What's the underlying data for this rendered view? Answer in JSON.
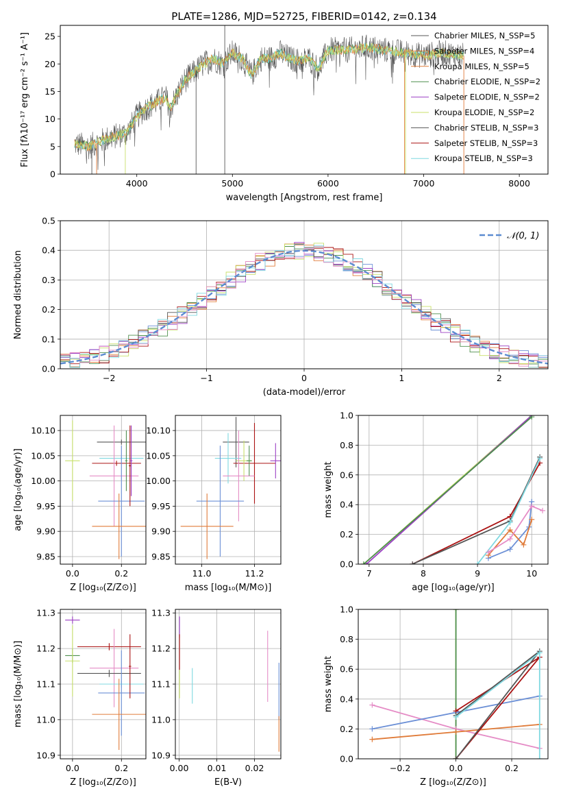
{
  "colors": {
    "tab_blue": "#6b8fd6",
    "tab_orange": "#e07b39",
    "tab_green": "#4e8f4e",
    "tab_purple": "#9c3fc4",
    "tab_yellow": "#c8e06a",
    "tab_gray": "#555555",
    "tab_red": "#aa1111",
    "tab_cyan": "#7fd8e0",
    "tab_pink": "#e58cc6",
    "lime": "#a8e040"
  },
  "chart_data": [
    {
      "id": "spectrum",
      "type": "line",
      "title": "PLATE=1286, MJD=52725, FIBERID=0142, z=0.134",
      "xlabel": "wavelength [Angstrom, rest frame]",
      "ylabel": "Flux [fλ10⁻¹⁷ erg cm⁻² s⁻¹ A⁻¹]",
      "xlim": [
        3200,
        8300
      ],
      "ylim": [
        0,
        27
      ],
      "xticks": [
        "4000",
        "5000",
        "6000",
        "7000",
        "8000"
      ],
      "yticks": [
        "0",
        "5",
        "10",
        "15",
        "20",
        "25"
      ],
      "xtick_values": [
        4000,
        5000,
        6000,
        7000,
        8000
      ],
      "ytick_values": [
        0,
        5,
        10,
        15,
        20,
        25
      ],
      "legend_position": "upper-right",
      "series": [
        {
          "name": "Chabrier MILES, N_SSP=5"
        },
        {
          "name": "Salpeter MILES, N_SSP=4"
        },
        {
          "name": "Kroupa MILES, N_SSP=5"
        },
        {
          "name": "Chabrier ELODIE, N_SSP=2"
        },
        {
          "name": "Salpeter ELODIE, N_SSP=2"
        },
        {
          "name": "Kroupa ELODIE, N_SSP=2"
        },
        {
          "name": "Chabrier STELIB, N_SSP=3"
        },
        {
          "name": "Salpeter STELIB, N_SSP=3"
        },
        {
          "name": "Kroupa STELIB, N_SSP=3"
        }
      ],
      "envelope": [
        [
          3350,
          5.5
        ],
        [
          3500,
          5.0
        ],
        [
          3700,
          6.5
        ],
        [
          3900,
          7.5
        ],
        [
          4000,
          10.5
        ],
        [
          4100,
          12
        ],
        [
          4200,
          13
        ],
        [
          4300,
          14
        ],
        [
          4350,
          12
        ],
        [
          4500,
          17
        ],
        [
          4700,
          20
        ],
        [
          4800,
          21
        ],
        [
          4900,
          20
        ],
        [
          5000,
          22
        ],
        [
          5100,
          21
        ],
        [
          5200,
          18
        ],
        [
          5300,
          21
        ],
        [
          5400,
          21
        ],
        [
          5500,
          22
        ],
        [
          5600,
          21
        ],
        [
          5700,
          20.5
        ],
        [
          5800,
          21
        ],
        [
          5900,
          19
        ],
        [
          6000,
          22.5
        ],
        [
          6200,
          22.5
        ],
        [
          6400,
          23
        ],
        [
          6600,
          22.5
        ],
        [
          6800,
          22
        ],
        [
          7000,
          21.5
        ],
        [
          7200,
          22
        ],
        [
          7400,
          21.5
        ]
      ]
    },
    {
      "id": "residuals",
      "type": "histogram",
      "xlabel": "(data-model)/error",
      "ylabel": "Normed distribution",
      "xlim": [
        -2.5,
        2.5
      ],
      "ylim": [
        0,
        0.5
      ],
      "xticks": [
        "−2",
        "−1",
        "0",
        "1",
        "2"
      ],
      "yticks": [
        "0.0",
        "0.1",
        "0.2",
        "0.3",
        "0.4",
        "0.5"
      ],
      "xtick_values": [
        -2,
        -1,
        0,
        1,
        2
      ],
      "ytick_values": [
        0,
        0.1,
        0.2,
        0.3,
        0.4,
        0.5
      ],
      "reference_curve": {
        "name": "𝒩(0, 1)",
        "mean": 0,
        "sigma": 1
      },
      "legend_position": "upper-right"
    },
    {
      "id": "age_vs_Z",
      "type": "scatter",
      "xlabel": "Z [log₁₀(Z/Z⊙)]",
      "ylabel": "age  [log₁₀(age/yr)]",
      "xlim": [
        -0.05,
        0.3
      ],
      "ylim": [
        9.835,
        10.13
      ],
      "xticks": [
        "0.0",
        "0.2"
      ],
      "xtick_values": [
        0,
        0.2
      ],
      "yticks": [
        "9.85",
        "9.90",
        "9.95",
        "10.00",
        "10.05",
        "10.10"
      ],
      "ytick_values": [
        9.85,
        9.9,
        9.95,
        10.0,
        10.05,
        10.1
      ],
      "errorbars": [
        {
          "color": "tab_gray",
          "x": 0.2,
          "xerr": 0.1,
          "y": 10.077,
          "yerr": 0.005
        },
        {
          "color": "tab_red",
          "x": 0.18,
          "xerr": 0.1,
          "y": 10.035,
          "yerr": 0.005
        },
        {
          "color": "tab_cyan",
          "x": 0.2,
          "xerr": 0.09,
          "y": 10.045,
          "yerr": 0.003
        },
        {
          "color": "tab_yellow",
          "x": 0.0,
          "xerr": 0.03,
          "y": 10.04,
          "yerr": 0.08
        },
        {
          "color": "tab_pink",
          "x": 0.17,
          "xerr": 0.1,
          "y": 10.01,
          "yerr": 0.1
        },
        {
          "color": "tab_blue",
          "x": 0.2,
          "xerr": 0.095,
          "y": 9.96,
          "yerr": 0.11
        },
        {
          "color": "tab_orange",
          "x": 0.19,
          "xerr": 0.11,
          "y": 9.91,
          "yerr": 0.065
        },
        {
          "color": "tab_red",
          "x": 0.235,
          "xerr": 0.005,
          "y": 10.03,
          "yerr": 0.08
        },
        {
          "color": "tab_purple",
          "x": 0.24,
          "xerr": 0.005,
          "y": 10.04,
          "yerr": 0.07
        },
        {
          "color": "tab_green",
          "x": 0.22,
          "xerr": 0.005,
          "y": 10.04,
          "yerr": 0.06
        }
      ]
    },
    {
      "id": "age_vs_mass",
      "type": "scatter",
      "xlabel": "mass [log₁₀(M/M⊙)]",
      "ylabel": "",
      "xlim": [
        10.9,
        11.3
      ],
      "ylim": [
        9.835,
        10.13
      ],
      "xticks": [
        "11.0",
        "11.2"
      ],
      "xtick_values": [
        11.0,
        11.2
      ],
      "yticks": [
        "9.85",
        "9.90",
        "9.95",
        "10.00",
        "10.05",
        "10.10"
      ],
      "ytick_values": [
        9.85,
        9.9,
        9.95,
        10.0,
        10.05,
        10.1
      ],
      "errorbars": [
        {
          "color": "tab_gray",
          "x": 11.13,
          "xerr": 0.05,
          "y": 10.077,
          "yerr": 0.05
        },
        {
          "color": "tab_red",
          "x": 11.2,
          "xerr": 0.08,
          "y": 10.035,
          "yerr": 0.08
        },
        {
          "color": "tab_cyan",
          "x": 11.1,
          "xerr": 0.05,
          "y": 10.045,
          "yerr": 0.05
        },
        {
          "color": "tab_yellow",
          "x": 11.16,
          "xerr": 0.03,
          "y": 10.04,
          "yerr": 0.04
        },
        {
          "color": "tab_pink",
          "x": 11.14,
          "xerr": 0.06,
          "y": 10.01,
          "yerr": 0.09
        },
        {
          "color": "tab_blue",
          "x": 11.07,
          "xerr": 0.09,
          "y": 9.96,
          "yerr": 0.11
        },
        {
          "color": "tab_orange",
          "x": 11.02,
          "xerr": 0.1,
          "y": 9.91,
          "yerr": 0.065
        },
        {
          "color": "tab_purple",
          "x": 11.28,
          "xerr": 0.02,
          "y": 10.04,
          "yerr": 0.035
        },
        {
          "color": "tab_green",
          "x": 11.18,
          "xerr": 0.01,
          "y": 10.04,
          "yerr": 0.03
        }
      ]
    },
    {
      "id": "massweight_vs_age",
      "type": "line",
      "xlabel": "age  [log₁₀(age/yr)]",
      "ylabel": "mass weight",
      "xlim": [
        6.8,
        10.3
      ],
      "ylim": [
        0,
        1.0
      ],
      "xticks": [
        "7",
        "8",
        "9",
        "10"
      ],
      "xtick_values": [
        7,
        8,
        9,
        10
      ],
      "yticks": [
        "0.0",
        "0.2",
        "0.4",
        "0.6",
        "0.8",
        "1.0"
      ],
      "ytick_values": [
        0,
        0.2,
        0.4,
        0.6,
        0.8,
        1.0
      ],
      "series": [
        {
          "color": "tab_yellow",
          "points": [
            [
              6.9,
              0
            ],
            [
              10.0,
              1.0
            ]
          ]
        },
        {
          "color": "tab_purple",
          "points": [
            [
              6.95,
              0
            ],
            [
              10.0,
              1.0
            ]
          ]
        },
        {
          "color": "tab_green",
          "points": [
            [
              6.9,
              0
            ],
            [
              10.0,
              0.99
            ]
          ]
        },
        {
          "color": "tab_red",
          "points": [
            [
              7.8,
              0
            ],
            [
              9.6,
              0.32
            ],
            [
              10.15,
              0.68
            ]
          ]
        },
        {
          "color": "tab_gray",
          "points": [
            [
              7.8,
              0
            ],
            [
              9.6,
              0.29
            ],
            [
              10.15,
              0.72
            ]
          ]
        },
        {
          "color": "tab_cyan",
          "points": [
            [
              9.0,
              0
            ],
            [
              9.6,
              0.28
            ],
            [
              10.15,
              0.71
            ]
          ]
        },
        {
          "color": "tab_blue",
          "points": [
            [
              9.2,
              0.04
            ],
            [
              9.6,
              0.1
            ],
            [
              9.95,
              0.25
            ],
            [
              10.0,
              0.42
            ]
          ]
        },
        {
          "color": "tab_orange",
          "points": [
            [
              9.2,
              0.06
            ],
            [
              9.6,
              0.23
            ],
            [
              9.85,
              0.13
            ],
            [
              10.0,
              0.3
            ]
          ]
        },
        {
          "color": "tab_pink",
          "points": [
            [
              9.2,
              0.08
            ],
            [
              9.6,
              0.17
            ],
            [
              10.0,
              0.39
            ],
            [
              10.2,
              0.36
            ]
          ]
        }
      ]
    },
    {
      "id": "mass_vs_Z",
      "type": "scatter",
      "xlabel": "Z [log₁₀(Z/Z⊙)]",
      "ylabel": "mass [log₁₀(M/M⊙)]",
      "xlim": [
        -0.05,
        0.3
      ],
      "ylim": [
        10.89,
        11.31
      ],
      "xticks": [
        "0.0",
        "0.2"
      ],
      "xtick_values": [
        0,
        0.2
      ],
      "yticks": [
        "10.9",
        "11.0",
        "11.1",
        "11.2",
        "11.3"
      ],
      "ytick_values": [
        10.9,
        11.0,
        11.1,
        11.2,
        11.3
      ],
      "errorbars": [
        {
          "color": "tab_purple",
          "x": 0.0,
          "xerr": 0.03,
          "y": 11.28,
          "yerr": 0.01
        },
        {
          "color": "tab_red",
          "x": 0.15,
          "xerr": 0.13,
          "y": 11.205,
          "yerr": 0.01
        },
        {
          "color": "tab_green",
          "x": 0.0,
          "xerr": 0.03,
          "y": 11.18,
          "yerr": 0.02
        },
        {
          "color": "tab_yellow",
          "x": 0.0,
          "xerr": 0.03,
          "y": 11.165,
          "yerr": 0.1
        },
        {
          "color": "tab_pink",
          "x": 0.17,
          "xerr": 0.1,
          "y": 11.145,
          "yerr": 0.11
        },
        {
          "color": "tab_gray",
          "x": 0.15,
          "xerr": 0.13,
          "y": 11.13,
          "yerr": 0.01
        },
        {
          "color": "tab_cyan",
          "x": 0.2,
          "xerr": 0.09,
          "y": 11.1,
          "yerr": 0.01
        },
        {
          "color": "tab_blue",
          "x": 0.2,
          "xerr": 0.095,
          "y": 11.075,
          "yerr": 0.12
        },
        {
          "color": "tab_orange",
          "x": 0.19,
          "xerr": 0.11,
          "y": 11.015,
          "yerr": 0.1
        },
        {
          "color": "tab_red",
          "x": 0.235,
          "xerr": 0.005,
          "y": 11.15,
          "yerr": 0.09
        }
      ]
    },
    {
      "id": "mass_vs_EBV",
      "type": "scatter",
      "xlabel": "E(B-V)",
      "ylabel": "",
      "xlim": [
        -0.001,
        0.027
      ],
      "ylim": [
        10.89,
        11.31
      ],
      "xticks": [
        "0.00",
        "0.01",
        "0.02"
      ],
      "xtick_values": [
        0,
        0.01,
        0.02
      ],
      "yticks": [
        "10.9",
        "11.0",
        "11.1",
        "11.2",
        "11.3"
      ],
      "ytick_values": [
        10.9,
        11.0,
        11.1,
        11.2,
        11.3
      ],
      "errorbars": [
        {
          "color": "tab_purple",
          "x": 0.0001,
          "xerr": 0,
          "y": 11.26,
          "yerr": 0.03
        },
        {
          "color": "tab_red",
          "x": 0.0001,
          "xerr": 0,
          "y": 11.19,
          "yerr": 0.05
        },
        {
          "color": "tab_yellow",
          "x": 0.0001,
          "xerr": 0,
          "y": 11.1,
          "yerr": 0.04
        },
        {
          "color": "tab_cyan",
          "x": 0.0035,
          "xerr": 0,
          "y": 11.095,
          "yerr": 0.05
        },
        {
          "color": "tab_pink",
          "x": 0.0235,
          "xerr": 0,
          "y": 11.15,
          "yerr": 0.1
        },
        {
          "color": "tab_blue",
          "x": 0.0265,
          "xerr": 0,
          "y": 11.08,
          "yerr": 0.08
        },
        {
          "color": "tab_orange",
          "x": 0.0265,
          "xerr": 0,
          "y": 10.96,
          "yerr": 0.05
        }
      ]
    },
    {
      "id": "massweight_vs_Z",
      "type": "line",
      "xlabel": "Z [log₁₀(Z/Z⊙)]",
      "ylabel": "mass weight",
      "xlim": [
        -0.35,
        0.33
      ],
      "ylim": [
        0,
        1.0
      ],
      "xticks": [
        "−0.2",
        "0.0",
        "0.2"
      ],
      "xtick_values": [
        -0.2,
        0,
        0.2
      ],
      "yticks": [
        "0.0",
        "0.2",
        "0.4",
        "0.6",
        "0.8",
        "1.0"
      ],
      "ytick_values": [
        0,
        0.2,
        0.4,
        0.6,
        0.8,
        1.0
      ],
      "series": [
        {
          "color": "tab_yellow",
          "points": [
            [
              0,
              0
            ],
            [
              0,
              1.0
            ]
          ]
        },
        {
          "color": "tab_green",
          "points": [
            [
              0,
              0
            ],
            [
              0,
              1.0
            ]
          ]
        },
        {
          "color": "tab_pink",
          "points": [
            [
              -0.3,
              0.36
            ],
            [
              0,
              0.2
            ],
            [
              0.3,
              0.07
            ]
          ]
        },
        {
          "color": "tab_blue",
          "points": [
            [
              -0.3,
              0.2
            ],
            [
              0,
              0.31
            ],
            [
              0.3,
              0.42
            ]
          ]
        },
        {
          "color": "tab_orange",
          "points": [
            [
              -0.3,
              0.13
            ],
            [
              0,
              0.18
            ],
            [
              0.3,
              0.23
            ]
          ]
        },
        {
          "color": "tab_red",
          "points": [
            [
              0,
              0
            ],
            [
              0.3,
              0.68
            ],
            [
              0,
              0.32
            ]
          ]
        },
        {
          "color": "tab_gray",
          "points": [
            [
              0,
              0
            ],
            [
              0.3,
              0.72
            ],
            [
              0,
              0.29
            ]
          ]
        },
        {
          "color": "tab_cyan",
          "points": [
            [
              0,
              0.28
            ],
            [
              0.3,
              0.71
            ],
            [
              0.3,
              0
            ]
          ]
        }
      ]
    }
  ]
}
